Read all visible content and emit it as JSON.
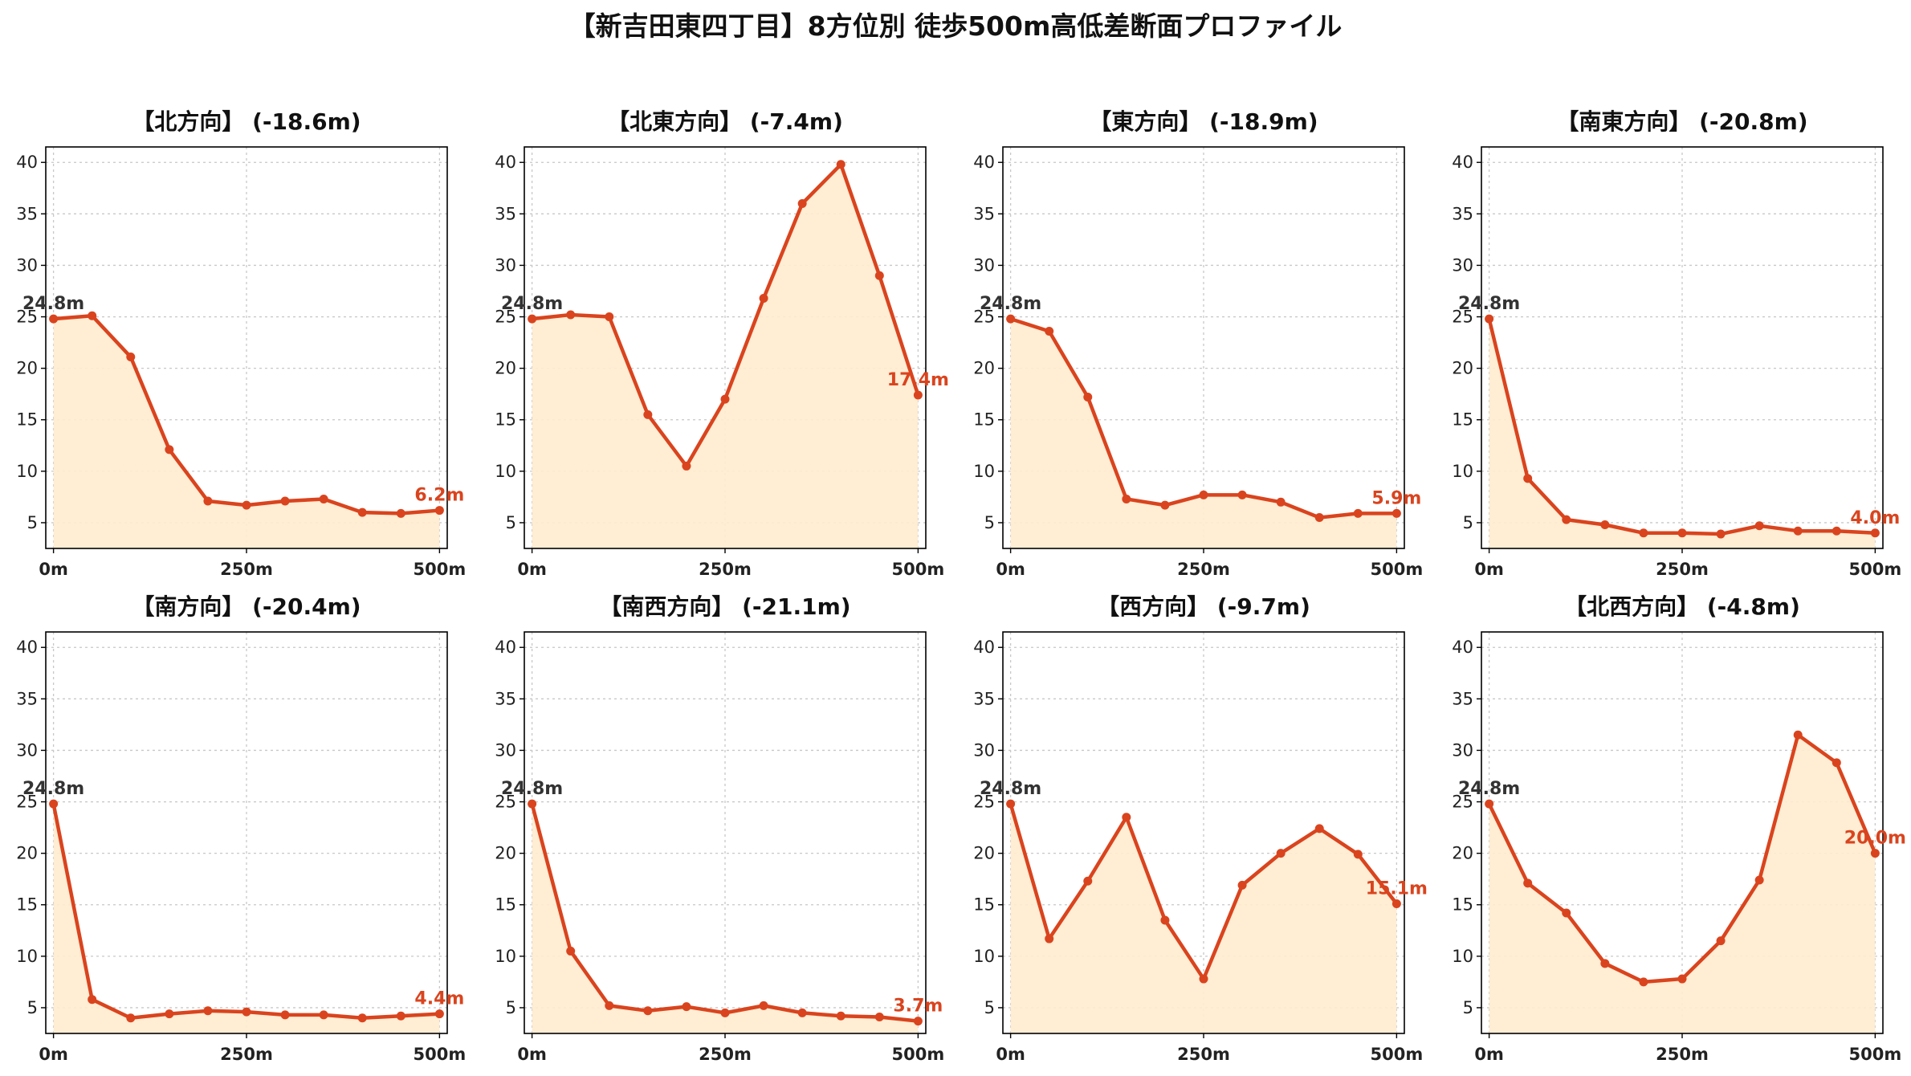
{
  "figure_title": "【新吉田東四丁目】8方位別 徒歩500m高低差断面プロファイル",
  "colors": {
    "line": "#d9441e",
    "fill": "#ffebcf",
    "start_label": "#333333",
    "end_label": "#d9441e"
  },
  "chart_data": [
    {
      "type": "area",
      "title": "【北方向】 (-18.6m)",
      "x": [
        0,
        50,
        100,
        150,
        200,
        250,
        300,
        350,
        400,
        450,
        500
      ],
      "values": [
        24.8,
        25.1,
        21.1,
        12.1,
        7.1,
        6.7,
        7.1,
        7.3,
        6.0,
        5.9,
        6.2
      ],
      "start_label": "24.8m",
      "end_label": "6.2m",
      "xticks": [
        "0m",
        "250m",
        "500m"
      ],
      "xtick_values": [
        0,
        250,
        500
      ],
      "yticks": [
        5,
        10,
        15,
        20,
        25,
        30,
        35,
        40
      ],
      "ylim": [
        2.5,
        41.5
      ],
      "xlim": [
        -10,
        510
      ],
      "grid": true
    },
    {
      "type": "area",
      "title": "【北東方向】 (-7.4m)",
      "x": [
        0,
        50,
        100,
        150,
        200,
        250,
        300,
        350,
        400,
        450,
        500
      ],
      "values": [
        24.8,
        25.2,
        25.0,
        15.5,
        10.5,
        17.0,
        26.8,
        36.0,
        39.8,
        29.0,
        17.4
      ],
      "start_label": "24.8m",
      "end_label": "17.4m",
      "xticks": [
        "0m",
        "250m",
        "500m"
      ],
      "xtick_values": [
        0,
        250,
        500
      ],
      "yticks": [
        5,
        10,
        15,
        20,
        25,
        30,
        35,
        40
      ],
      "ylim": [
        2.5,
        41.5
      ],
      "xlim": [
        -10,
        510
      ],
      "grid": true
    },
    {
      "type": "area",
      "title": "【東方向】 (-18.9m)",
      "x": [
        0,
        50,
        100,
        150,
        200,
        250,
        300,
        350,
        400,
        450,
        500
      ],
      "values": [
        24.8,
        23.6,
        17.2,
        7.3,
        6.7,
        7.7,
        7.7,
        7.0,
        5.5,
        5.9,
        5.9
      ],
      "start_label": "24.8m",
      "end_label": "5.9m",
      "xticks": [
        "0m",
        "250m",
        "500m"
      ],
      "xtick_values": [
        0,
        250,
        500
      ],
      "yticks": [
        5,
        10,
        15,
        20,
        25,
        30,
        35,
        40
      ],
      "ylim": [
        2.5,
        41.5
      ],
      "xlim": [
        -10,
        510
      ],
      "grid": true
    },
    {
      "type": "area",
      "title": "【南東方向】 (-20.8m)",
      "x": [
        0,
        50,
        100,
        150,
        200,
        250,
        300,
        350,
        400,
        450,
        500
      ],
      "values": [
        24.8,
        9.3,
        5.3,
        4.8,
        4.0,
        4.0,
        3.9,
        4.7,
        4.2,
        4.2,
        4.0
      ],
      "start_label": "24.8m",
      "end_label": "4.0m",
      "xticks": [
        "0m",
        "250m",
        "500m"
      ],
      "xtick_values": [
        0,
        250,
        500
      ],
      "yticks": [
        5,
        10,
        15,
        20,
        25,
        30,
        35,
        40
      ],
      "ylim": [
        2.5,
        41.5
      ],
      "xlim": [
        -10,
        510
      ],
      "grid": true
    },
    {
      "type": "area",
      "title": "【南方向】 (-20.4m)",
      "x": [
        0,
        50,
        100,
        150,
        200,
        250,
        300,
        350,
        400,
        450,
        500
      ],
      "values": [
        24.8,
        5.8,
        4.0,
        4.4,
        4.7,
        4.6,
        4.3,
        4.3,
        4.0,
        4.2,
        4.4
      ],
      "start_label": "24.8m",
      "end_label": "4.4m",
      "xticks": [
        "0m",
        "250m",
        "500m"
      ],
      "xtick_values": [
        0,
        250,
        500
      ],
      "yticks": [
        5,
        10,
        15,
        20,
        25,
        30,
        35,
        40
      ],
      "ylim": [
        2.5,
        41.5
      ],
      "xlim": [
        -10,
        510
      ],
      "grid": true
    },
    {
      "type": "area",
      "title": "【南西方向】 (-21.1m)",
      "x": [
        0,
        50,
        100,
        150,
        200,
        250,
        300,
        350,
        400,
        450,
        500
      ],
      "values": [
        24.8,
        10.5,
        5.2,
        4.7,
        5.1,
        4.5,
        5.2,
        4.5,
        4.2,
        4.1,
        3.7
      ],
      "start_label": "24.8m",
      "end_label": "3.7m",
      "xticks": [
        "0m",
        "250m",
        "500m"
      ],
      "xtick_values": [
        0,
        250,
        500
      ],
      "yticks": [
        5,
        10,
        15,
        20,
        25,
        30,
        35,
        40
      ],
      "ylim": [
        2.5,
        41.5
      ],
      "xlim": [
        -10,
        510
      ],
      "grid": true
    },
    {
      "type": "area",
      "title": "【西方向】 (-9.7m)",
      "x": [
        0,
        50,
        100,
        150,
        200,
        250,
        300,
        350,
        400,
        450,
        500
      ],
      "values": [
        24.8,
        11.7,
        17.3,
        23.5,
        13.5,
        7.8,
        16.9,
        20.0,
        22.4,
        19.9,
        15.1
      ],
      "start_label": "24.8m",
      "end_label": "15.1m",
      "xticks": [
        "0m",
        "250m",
        "500m"
      ],
      "xtick_values": [
        0,
        250,
        500
      ],
      "yticks": [
        5,
        10,
        15,
        20,
        25,
        30,
        35,
        40
      ],
      "ylim": [
        2.5,
        41.5
      ],
      "xlim": [
        -10,
        510
      ],
      "grid": true
    },
    {
      "type": "area",
      "title": "【北西方向】 (-4.8m)",
      "x": [
        0,
        50,
        100,
        150,
        200,
        250,
        300,
        350,
        400,
        450,
        500
      ],
      "values": [
        24.8,
        17.1,
        14.2,
        9.3,
        7.5,
        7.8,
        11.5,
        17.4,
        31.5,
        28.8,
        20.0
      ],
      "start_label": "24.8m",
      "end_label": "20.0m",
      "xticks": [
        "0m",
        "250m",
        "500m"
      ],
      "xtick_values": [
        0,
        250,
        500
      ],
      "yticks": [
        5,
        10,
        15,
        20,
        25,
        30,
        35,
        40
      ],
      "ylim": [
        2.5,
        41.5
      ],
      "xlim": [
        -10,
        510
      ],
      "grid": true
    }
  ]
}
